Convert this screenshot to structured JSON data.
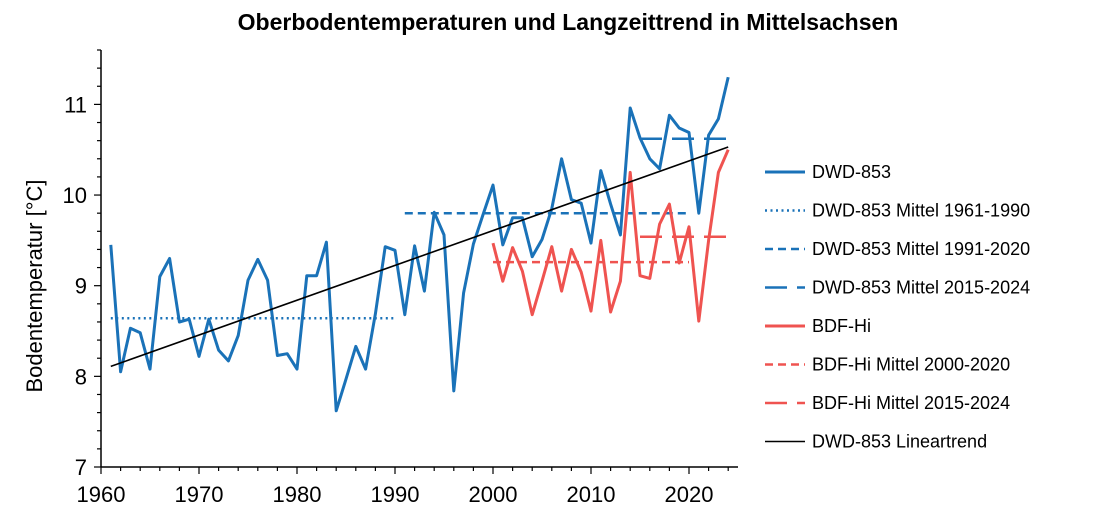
{
  "chart_data": {
    "type": "line",
    "title": "Oberbodentemperaturen und Langzeittrend in Mittelsachsen",
    "xlabel": "",
    "ylabel": "Bodentemperatur [°C]",
    "xlim": [
      1960,
      2025
    ],
    "ylim": [
      7,
      11.6
    ],
    "xticks": [
      1960,
      1970,
      1980,
      1990,
      2000,
      2010,
      2020
    ],
    "yticks": [
      7,
      8,
      9,
      10,
      11
    ],
    "grid": false,
    "legend_position": "right",
    "series": [
      {
        "name": "DWD-853",
        "color": "#1a72b8",
        "style": "solid",
        "x": [
          1961,
          1962,
          1963,
          1964,
          1965,
          1966,
          1967,
          1968,
          1969,
          1970,
          1971,
          1972,
          1973,
          1974,
          1975,
          1976,
          1977,
          1978,
          1979,
          1980,
          1981,
          1982,
          1983,
          1984,
          1985,
          1986,
          1987,
          1988,
          1989,
          1990,
          1991,
          1992,
          1993,
          1994,
          1995,
          1996,
          1997,
          1998,
          1999,
          2000,
          2001,
          2002,
          2003,
          2004,
          2005,
          2006,
          2007,
          2008,
          2009,
          2010,
          2011,
          2012,
          2013,
          2014,
          2015,
          2016,
          2017,
          2018,
          2019,
          2020,
          2021,
          2022,
          2023,
          2024
        ],
        "y": [
          9.45,
          8.05,
          8.53,
          8.48,
          8.08,
          9.1,
          9.3,
          8.6,
          8.63,
          8.22,
          8.63,
          8.29,
          8.17,
          8.45,
          9.06,
          9.29,
          9.06,
          8.23,
          8.25,
          8.08,
          9.11,
          9.11,
          9.48,
          7.62,
          7.97,
          8.33,
          8.08,
          8.69,
          9.43,
          9.39,
          8.68,
          9.44,
          8.94,
          9.81,
          9.56,
          7.84,
          8.92,
          9.46,
          9.79,
          10.11,
          9.45,
          9.75,
          9.75,
          9.32,
          9.51,
          9.85,
          10.4,
          9.95,
          9.91,
          9.47,
          10.27,
          9.9,
          9.56,
          10.96,
          10.63,
          10.4,
          10.29,
          10.88,
          10.74,
          10.69,
          9.8,
          10.66,
          10.84,
          11.3
        ]
      },
      {
        "name": "DWD-853 Mittel 1961-1990",
        "color": "#1a72b8",
        "style": "dotted",
        "x": [
          1961,
          1990
        ],
        "y": [
          8.64,
          8.64
        ]
      },
      {
        "name": "DWD-853 Mittel 1991-2020",
        "color": "#1a72b8",
        "style": "dashed",
        "x": [
          1991,
          2020
        ],
        "y": [
          9.8,
          9.8
        ]
      },
      {
        "name": "DWD-853 Mittel 2015-2024",
        "color": "#1a72b8",
        "style": "longdash",
        "x": [
          2015,
          2024
        ],
        "y": [
          10.62,
          10.62
        ]
      },
      {
        "name": "BDF-Hi",
        "color": "#ef5350",
        "style": "solid",
        "x": [
          2000,
          2001,
          2002,
          2003,
          2004,
          2005,
          2006,
          2007,
          2008,
          2009,
          2010,
          2011,
          2012,
          2013,
          2014,
          2015,
          2016,
          2017,
          2018,
          2019,
          2020,
          2021,
          2022,
          2023,
          2024
        ],
        "y": [
          9.47,
          9.05,
          9.42,
          9.16,
          8.68,
          9.05,
          9.43,
          8.94,
          9.4,
          9.15,
          8.72,
          9.5,
          8.71,
          9.05,
          10.25,
          9.11,
          9.08,
          9.68,
          9.9,
          9.25,
          9.65,
          8.61,
          9.5,
          10.25,
          10.5
        ]
      },
      {
        "name": "BDF-Hi Mittel 2000-2020",
        "color": "#ef5350",
        "style": "dashed",
        "x": [
          2000,
          2020
        ],
        "y": [
          9.26,
          9.26
        ]
      },
      {
        "name": "BDF-Hi Mittel 2015-2024",
        "color": "#ef5350",
        "style": "longdash",
        "x": [
          2015,
          2024
        ],
        "y": [
          9.54,
          9.54
        ]
      },
      {
        "name": "DWD-853 Lineartrend",
        "color": "#000000",
        "style": "thin",
        "x": [
          1961,
          2024
        ],
        "y": [
          8.11,
          10.53
        ]
      }
    ]
  }
}
